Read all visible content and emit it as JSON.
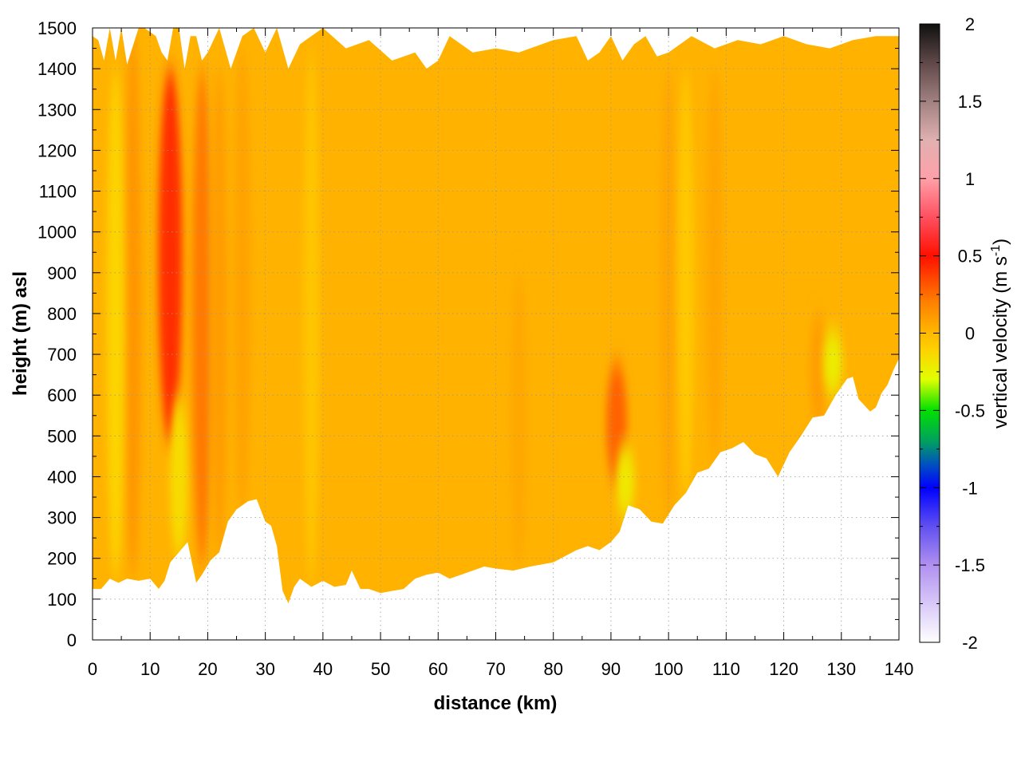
{
  "chart_data": {
    "type": "heatmap",
    "title": "",
    "xlabel": "distance (km)",
    "ylabel": "height (m) asl",
    "xlim": [
      0,
      140
    ],
    "ylim": [
      0,
      1500
    ],
    "x_ticks": [
      "0",
      "10",
      "20",
      "30",
      "40",
      "50",
      "60",
      "70",
      "80",
      "90",
      "100",
      "110",
      "120",
      "130",
      "140"
    ],
    "y_ticks": [
      "0",
      "100",
      "200",
      "300",
      "400",
      "500",
      "600",
      "700",
      "800",
      "900",
      "1000",
      "1100",
      "1200",
      "1300",
      "1400",
      "1500"
    ],
    "grid": true,
    "colorbar": {
      "label_main": "vertical velocity (m s",
      "label_sup": "-1",
      "label_end": ")",
      "range": [
        -2,
        2
      ],
      "ticks": [
        "-2",
        "-1.5",
        "-1",
        "-0.5",
        "0",
        "0.5",
        "1",
        "1.5",
        "2"
      ],
      "stops": [
        {
          "v": -2.0,
          "c": "#ffffff"
        },
        {
          "v": -1.75,
          "c": "#d8c8f8"
        },
        {
          "v": -1.5,
          "c": "#b090f0"
        },
        {
          "v": -1.25,
          "c": "#6050f0"
        },
        {
          "v": -1.0,
          "c": "#0000ff"
        },
        {
          "v": -0.85,
          "c": "#0050c0"
        },
        {
          "v": -0.7,
          "c": "#00a060"
        },
        {
          "v": -0.5,
          "c": "#00e000"
        },
        {
          "v": -0.3,
          "c": "#e0ff00"
        },
        {
          "v": -0.1,
          "c": "#ffd000"
        },
        {
          "v": 0.0,
          "c": "#ffb800"
        },
        {
          "v": 0.2,
          "c": "#ff8000"
        },
        {
          "v": 0.5,
          "c": "#ff1000"
        },
        {
          "v": 0.75,
          "c": "#ff5060"
        },
        {
          "v": 1.0,
          "c": "#ffa0a8"
        },
        {
          "v": 1.25,
          "c": "#e0b0b0"
        },
        {
          "v": 1.5,
          "c": "#a08080"
        },
        {
          "v": 1.75,
          "c": "#604848"
        },
        {
          "v": 2.0,
          "c": "#101010"
        }
      ]
    },
    "background_value": 0.02,
    "features": [
      {
        "x": 7,
        "ybot": 150,
        "ytop": 1500,
        "v": 0.12
      },
      {
        "x": 4,
        "ybot": 150,
        "ytop": 1400,
        "v": -0.12
      },
      {
        "x": 13.5,
        "ybot": 480,
        "ytop": 1400,
        "v": 0.42
      },
      {
        "x": 15,
        "ybot": 200,
        "ytop": 600,
        "v": -0.15
      },
      {
        "x": 19,
        "ybot": 180,
        "ytop": 1400,
        "v": 0.22
      },
      {
        "x": 22,
        "ybot": 200,
        "ytop": 1400,
        "v": 0.1
      },
      {
        "x": 26,
        "ybot": 300,
        "ytop": 1450,
        "v": 0.08
      },
      {
        "x": 38,
        "ybot": 130,
        "ytop": 1450,
        "v": -0.06
      },
      {
        "x": 74,
        "ybot": 180,
        "ytop": 900,
        "v": 0.06
      },
      {
        "x": 91,
        "ybot": 380,
        "ytop": 680,
        "v": 0.28
      },
      {
        "x": 92.5,
        "ybot": 300,
        "ytop": 480,
        "v": -0.2
      },
      {
        "x": 100,
        "ybot": 290,
        "ytop": 1400,
        "v": 0.07
      },
      {
        "x": 103,
        "ybot": 340,
        "ytop": 1400,
        "v": -0.07
      },
      {
        "x": 108,
        "ybot": 430,
        "ytop": 1400,
        "v": 0.07
      },
      {
        "x": 126,
        "ybot": 520,
        "ytop": 800,
        "v": 0.1
      },
      {
        "x": 128.5,
        "ybot": 600,
        "ytop": 760,
        "v": -0.22
      }
    ],
    "terrain": {
      "x": [
        0,
        1.5,
        3,
        4.5,
        6,
        8,
        10,
        11.5,
        12.5,
        13.5,
        15,
        16.5,
        18,
        19,
        20.5,
        22,
        23.5,
        25,
        27,
        28.5,
        30,
        31,
        32,
        33,
        34,
        35,
        36,
        38,
        40,
        42,
        44,
        45,
        46.5,
        48,
        50,
        52,
        54,
        56,
        58,
        60,
        62,
        64,
        66,
        68,
        70,
        73,
        76,
        80,
        84,
        86,
        88,
        90,
        91.5,
        93,
        95,
        97,
        99,
        101,
        103,
        105,
        107,
        109,
        111,
        113,
        115,
        117,
        119,
        121,
        123,
        125,
        127,
        129,
        131,
        132,
        133,
        134,
        135,
        136,
        137,
        138,
        139,
        140
      ],
      "y": [
        125,
        125,
        150,
        140,
        150,
        145,
        150,
        125,
        145,
        190,
        215,
        240,
        140,
        160,
        195,
        215,
        290,
        320,
        340,
        345,
        290,
        280,
        230,
        120,
        90,
        130,
        150,
        130,
        145,
        130,
        135,
        170,
        125,
        125,
        115,
        120,
        125,
        150,
        160,
        165,
        150,
        160,
        170,
        180,
        175,
        170,
        180,
        190,
        220,
        230,
        220,
        240,
        265,
        330,
        320,
        290,
        285,
        330,
        360,
        410,
        420,
        460,
        470,
        485,
        455,
        445,
        400,
        460,
        500,
        545,
        550,
        600,
        640,
        645,
        590,
        575,
        560,
        570,
        605,
        625,
        660,
        690,
        700
      ]
    },
    "top_edge": {
      "x": [
        0,
        1,
        2,
        3,
        4,
        5,
        6,
        8,
        9,
        10,
        11,
        12,
        13,
        14,
        15,
        16,
        17,
        18,
        19,
        20,
        22,
        24,
        26,
        28,
        30,
        32,
        34,
        36,
        38,
        40,
        44,
        48,
        52,
        56,
        58,
        60,
        62,
        66,
        70,
        74,
        80,
        84,
        86,
        88,
        90,
        92,
        94,
        96,
        98,
        100,
        104,
        108,
        112,
        116,
        120,
        124,
        128,
        132,
        136,
        140
      ],
      "y": [
        1480,
        1470,
        1420,
        1500,
        1420,
        1500,
        1410,
        1500,
        1500,
        1490,
        1480,
        1440,
        1420,
        1500,
        1500,
        1400,
        1480,
        1480,
        1420,
        1440,
        1500,
        1400,
        1480,
        1500,
        1440,
        1500,
        1400,
        1460,
        1480,
        1500,
        1450,
        1470,
        1420,
        1440,
        1400,
        1420,
        1480,
        1440,
        1450,
        1440,
        1470,
        1480,
        1420,
        1440,
        1480,
        1420,
        1460,
        1480,
        1430,
        1440,
        1480,
        1450,
        1470,
        1460,
        1480,
        1460,
        1450,
        1470,
        1480,
        1480
      ]
    }
  }
}
